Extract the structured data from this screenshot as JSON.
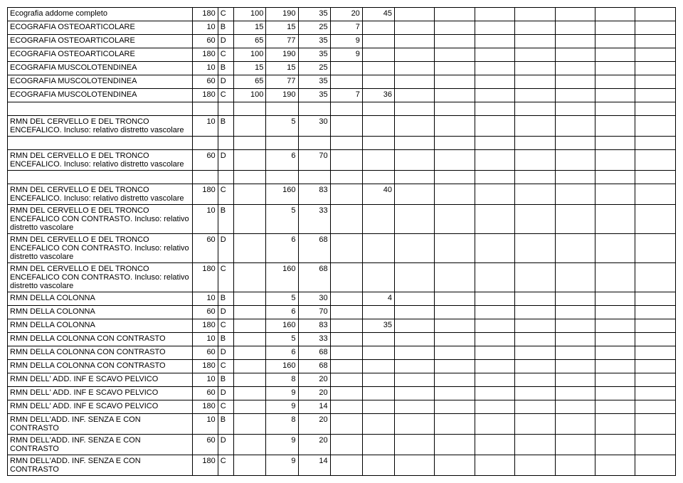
{
  "columns": [
    "desc",
    "c1",
    "c2",
    "c3",
    "c4",
    "c5",
    "c6",
    "c7",
    "b1",
    "b2",
    "b3",
    "b4",
    "b5",
    "b6",
    "b7"
  ],
  "rows": [
    {
      "desc": "Ecografia addome completo",
      "c1": "180",
      "c2": "C",
      "c3": "100",
      "c4": "190",
      "c5": "35",
      "c6": "20",
      "c7": "45"
    },
    {
      "desc": "ECOGRAFIA OSTEOARTICOLARE",
      "c1": "10",
      "c2": "B",
      "c3": "15",
      "c4": "15",
      "c5": "25",
      "c6": "7",
      "c7": ""
    },
    {
      "desc": "ECOGRAFIA OSTEOARTICOLARE",
      "c1": "60",
      "c2": "D",
      "c3": "65",
      "c4": "77",
      "c5": "35",
      "c6": "9",
      "c7": ""
    },
    {
      "desc": "ECOGRAFIA OSTEOARTICOLARE",
      "c1": "180",
      "c2": "C",
      "c3": "100",
      "c4": "190",
      "c5": "35",
      "c6": "9",
      "c7": ""
    },
    {
      "desc": "ECOGRAFIA MUSCOLOTENDINEA",
      "c1": "10",
      "c2": "B",
      "c3": "15",
      "c4": "15",
      "c5": "25",
      "c6": "",
      "c7": ""
    },
    {
      "desc": "ECOGRAFIA MUSCOLOTENDINEA",
      "c1": "60",
      "c2": "D",
      "c3": "65",
      "c4": "77",
      "c5": "35",
      "c6": "",
      "c7": ""
    },
    {
      "desc": "ECOGRAFIA MUSCOLOTENDINEA",
      "c1": "180",
      "c2": "C",
      "c3": "100",
      "c4": "190",
      "c5": "35",
      "c6": "7",
      "c7": "36"
    },
    {
      "desc": "",
      "c1": "",
      "c2": "",
      "c3": "",
      "c4": "",
      "c5": "",
      "c6": "",
      "c7": ""
    },
    {
      "desc": "RMN  DEL CERVELLO E DEL TRONCO ENCEFALICO. Incluso: relativo distretto vascolare",
      "c1": "10",
      "c2": "B",
      "c3": "",
      "c4": "5",
      "c5": "30",
      "c6": "",
      "c7": ""
    },
    {
      "desc": "",
      "c1": "",
      "c2": "",
      "c3": "",
      "c4": "",
      "c5": "",
      "c6": "",
      "c7": ""
    },
    {
      "desc": "RMN  DEL CERVELLO E DEL TRONCO ENCEFALICO. Incluso: relativo distretto vascolare",
      "c1": "60",
      "c2": "D",
      "c3": "",
      "c4": "6",
      "c5": "70",
      "c6": "",
      "c7": ""
    },
    {
      "desc": "",
      "c1": "",
      "c2": "",
      "c3": "",
      "c4": "",
      "c5": "",
      "c6": "",
      "c7": ""
    },
    {
      "desc": "RMN  DEL CERVELLO E DEL TRONCO ENCEFALICO. Incluso: relativo distretto vascolare",
      "c1": "180",
      "c2": "C",
      "c3": "",
      "c4": "160",
      "c5": "83",
      "c6": "",
      "c7": "40"
    },
    {
      "desc": "RMN DEL CERVELLO E DEL TRONCO ENCEFALICO CON CONTRASTO. Incluso: relativo distretto vascolare",
      "c1": "10",
      "c2": "B",
      "c3": "",
      "c4": "5",
      "c5": "33",
      "c6": "",
      "c7": ""
    },
    {
      "desc": "RMN DEL CERVELLO E DEL TRONCO ENCEFALICO CON CONTRASTO. Incluso: relativo distretto vascolare",
      "c1": "60",
      "c2": "D",
      "c3": "",
      "c4": "6",
      "c5": "68",
      "c6": "",
      "c7": ""
    },
    {
      "desc": "RMN DEL CERVELLO E DEL TRONCO ENCEFALICO CON CONTRASTO. Incluso: relativo distretto vascolare",
      "c1": "180",
      "c2": "C",
      "c3": "",
      "c4": "160",
      "c5": "68",
      "c6": "",
      "c7": ""
    },
    {
      "desc": "RMN DELLA COLONNA",
      "c1": "10",
      "c2": "B",
      "c3": "",
      "c4": "5",
      "c5": "30",
      "c6": "",
      "c7": "4"
    },
    {
      "desc": "RMN DELLA COLONNA",
      "c1": "60",
      "c2": "D",
      "c3": "",
      "c4": "6",
      "c5": "70",
      "c6": "",
      "c7": ""
    },
    {
      "desc": "RMN DELLA COLONNA",
      "c1": "180",
      "c2": "C",
      "c3": "",
      "c4": "160",
      "c5": "83",
      "c6": "",
      "c7": "35"
    },
    {
      "desc": "RMN DELLA COLONNA CON CONTRASTO",
      "c1": "10",
      "c2": "B",
      "c3": "",
      "c4": "5",
      "c5": "33",
      "c6": "",
      "c7": ""
    },
    {
      "desc": "RMN DELLA COLONNA CON CONTRASTO",
      "c1": "60",
      "c2": "D",
      "c3": "",
      "c4": "6",
      "c5": "68",
      "c6": "",
      "c7": ""
    },
    {
      "desc": "RMN DELLA COLONNA CON CONTRASTO",
      "c1": "180",
      "c2": "C",
      "c3": "",
      "c4": "160",
      "c5": "68",
      "c6": "",
      "c7": ""
    },
    {
      "desc": "RMN DELL' ADD. INF E SCAVO PELVICO",
      "c1": "10",
      "c2": "B",
      "c3": "",
      "c4": "8",
      "c5": "20",
      "c6": "",
      "c7": ""
    },
    {
      "desc": "RMN DELL' ADD. INF E SCAVO PELVICO",
      "c1": "60",
      "c2": "D",
      "c3": "",
      "c4": "9",
      "c5": "20",
      "c6": "",
      "c7": ""
    },
    {
      "desc": "RMN DELL' ADD. INF E SCAVO PELVICO",
      "c1": "180",
      "c2": "C",
      "c3": "",
      "c4": "9",
      "c5": "14",
      "c6": "",
      "c7": ""
    },
    {
      "desc": "RMN DELL'ADD. INF.  SENZA E CON CONTRASTO",
      "c1": "10",
      "c2": "B",
      "c3": "",
      "c4": "8",
      "c5": "20",
      "c6": "",
      "c7": ""
    },
    {
      "desc": "RMN DELL'ADD. INF.  SENZA E CON CONTRASTO",
      "c1": "60",
      "c2": "D",
      "c3": "",
      "c4": "9",
      "c5": "20",
      "c6": "",
      "c7": ""
    },
    {
      "desc": "RMN DELL'ADD. INF.  SENZA E CON CONTRASTO",
      "c1": "180",
      "c2": "C",
      "c3": "",
      "c4": "9",
      "c5": "14",
      "c6": "",
      "c7": ""
    }
  ]
}
